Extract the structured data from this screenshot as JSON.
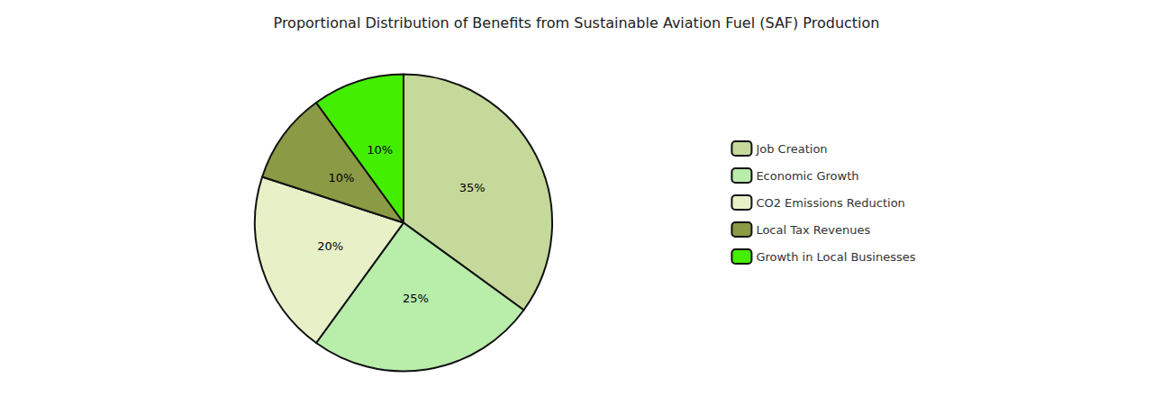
{
  "chart_data": {
    "type": "pie",
    "title": "Proportional Distribution of Benefits from Sustainable Aviation Fuel (SAF) Production",
    "categories": [
      "Job Creation",
      "Economic Growth",
      "CO2 Emissions Reduction",
      "Local Tax Revenues",
      "Growth in Local Businesses"
    ],
    "values": [
      35,
      25,
      20,
      10,
      10
    ],
    "value_labels": [
      "35%",
      "25%",
      "20%",
      "10%",
      "10%"
    ],
    "colors": [
      "#c5d99a",
      "#b8edaa",
      "#e8f0c8",
      "#8a9a45",
      "#44ee00"
    ],
    "data_labels": true,
    "legend": "right"
  }
}
